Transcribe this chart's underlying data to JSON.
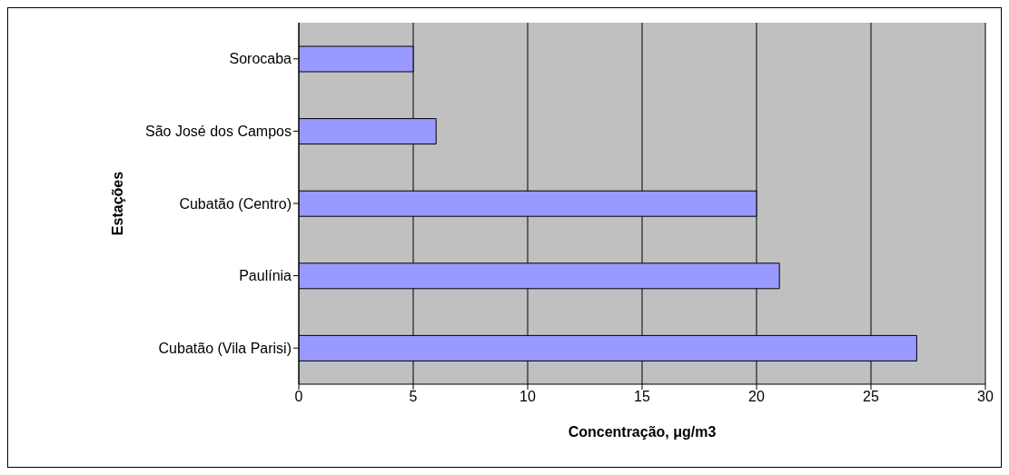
{
  "chart_data": {
    "type": "bar",
    "orientation": "horizontal",
    "categories": [
      "Sorocaba",
      "São José dos Campos",
      "Cubatão (Centro)",
      "Paulínia",
      "Cubatão (Vila Parisi)"
    ],
    "values": [
      5,
      6,
      20,
      21,
      27
    ],
    "color": "#9999ff",
    "xlabel": "Concentração, μg/m3",
    "ylabel": "Estações",
    "xlim": [
      0,
      30
    ],
    "xticks": [
      0,
      5,
      10,
      15,
      20,
      25,
      30
    ],
    "grid": "x",
    "legend": false
  }
}
